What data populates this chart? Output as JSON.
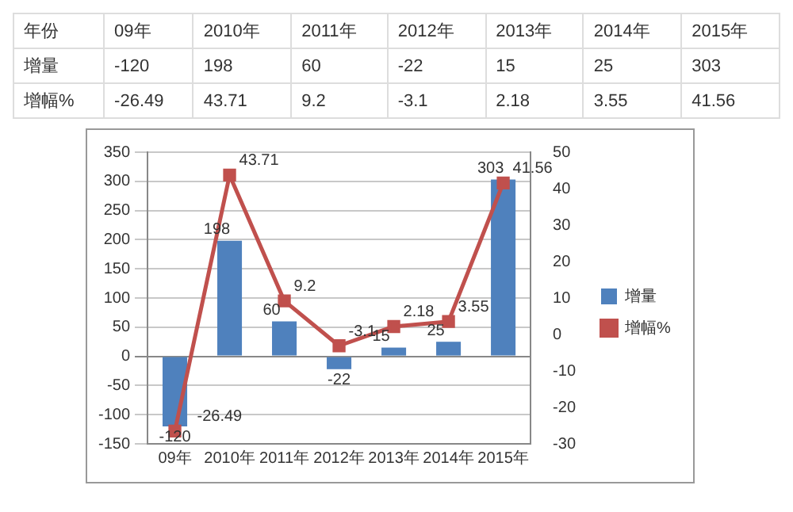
{
  "chart_data": [
    {
      "type": "heatmap",
      "xlabel": "年份",
      "categories": [
        "09年",
        "2010年",
        "2011年",
        "2012年",
        "2013年",
        "2014年",
        "2015年"
      ],
      "y_categories": [
        "增量",
        "增幅%"
      ],
      "cells": [
        [
          -120,
          198,
          60,
          -22,
          15,
          25,
          303
        ],
        [
          -26.49,
          43.71,
          9.2,
          -3.1,
          2.18,
          3.55,
          41.56
        ]
      ],
      "data_labels": true
    },
    {
      "type": "bar",
      "categories": [
        "09年",
        "2010年",
        "2011年",
        "2012年",
        "2013年",
        "2014年",
        "2015年"
      ],
      "series": [
        {
          "name": "增量",
          "type": "bar",
          "color": "#4f81bd",
          "values": [
            -120,
            198,
            60,
            -22,
            15,
            25,
            303
          ]
        },
        {
          "name": "增幅%",
          "type": "line",
          "axis": "y2",
          "color": "#c0504d",
          "values": [
            -26.49,
            43.71,
            9.2,
            -3.1,
            2.18,
            3.55,
            41.56
          ]
        }
      ],
      "ylim": [
        -150,
        350
      ],
      "yticks": [
        -150,
        -100,
        -50,
        0,
        50,
        100,
        150,
        200,
        250,
        300,
        350
      ],
      "y2lim": [
        -30,
        50
      ],
      "y2ticks": [
        -30,
        -20,
        -10,
        0,
        10,
        20,
        30,
        40,
        50
      ],
      "grid": "y",
      "legend": "right",
      "marker": "square",
      "data_labels": true
    }
  ]
}
